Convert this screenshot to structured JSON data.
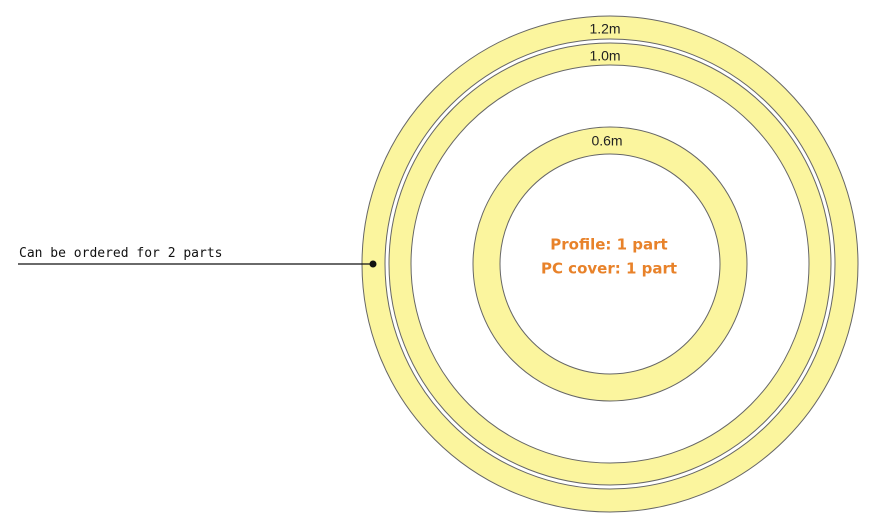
{
  "rings": [
    {
      "label": "1.2m"
    },
    {
      "label": "1.0m"
    },
    {
      "label": "0.6m"
    }
  ],
  "center_text": [
    "Profile: 1  part",
    "PC cover: 1 part"
  ],
  "annotation": "Can be ordered for 2 parts"
}
